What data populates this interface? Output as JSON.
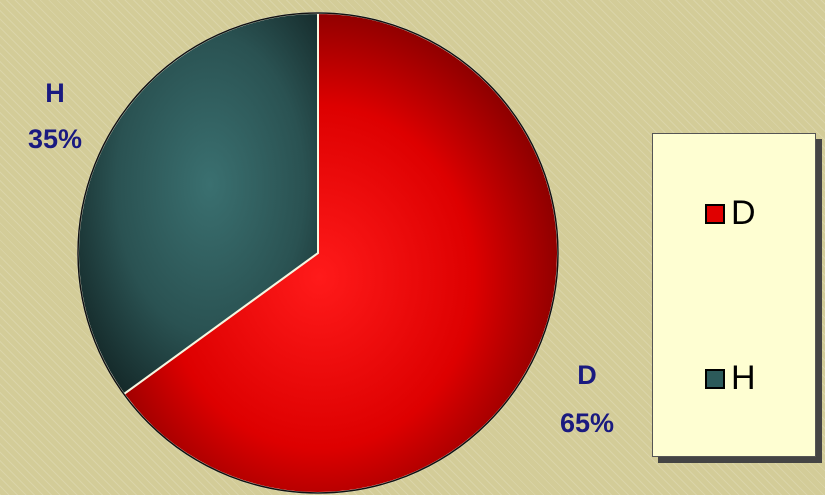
{
  "chart_data": {
    "type": "pie",
    "slices": [
      {
        "label": "D",
        "value": 65,
        "pct_label": "65%",
        "color": "#e00000"
      },
      {
        "label": "H",
        "value": 35,
        "pct_label": "35%",
        "color": "#2c5a5a"
      }
    ],
    "legend": {
      "position": "right",
      "items": [
        "D",
        "H"
      ]
    }
  }
}
